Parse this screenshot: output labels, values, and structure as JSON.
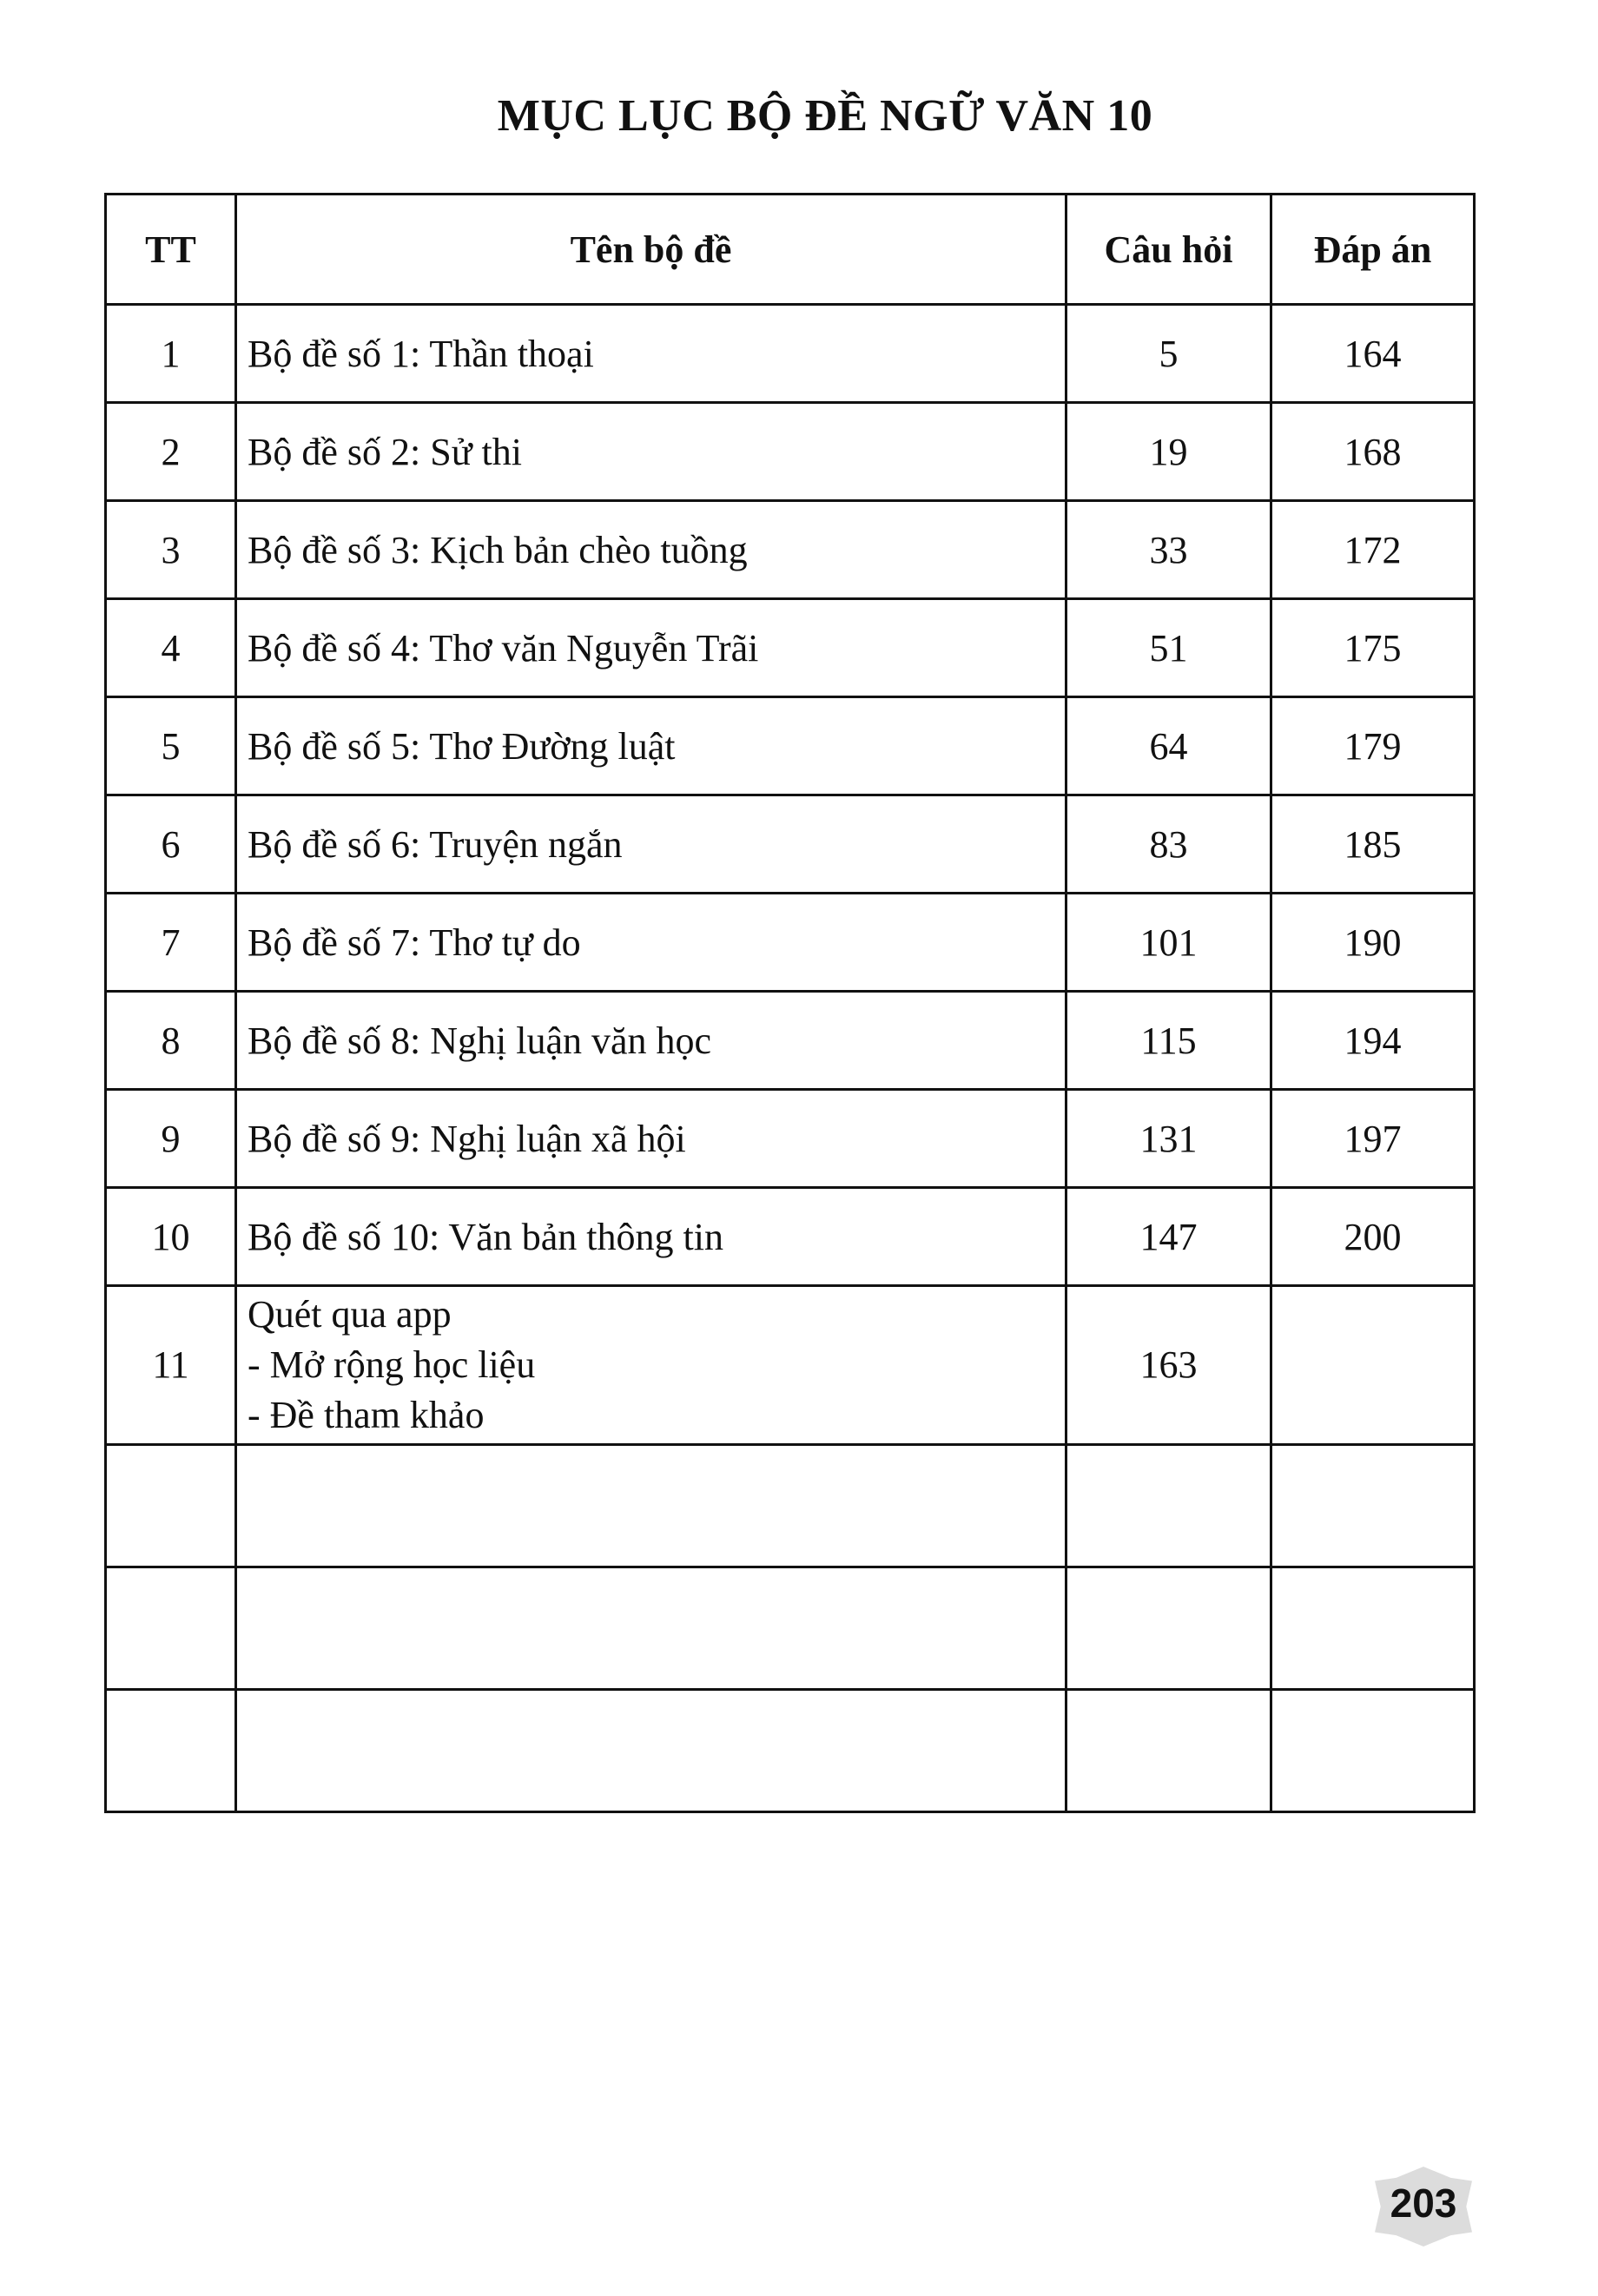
{
  "title": "MỤC LỤC BỘ ĐỀ NGỮ VĂN 10",
  "headers": {
    "tt": "TT",
    "name": "Tên bộ đề",
    "questions": "Câu hỏi",
    "answers": "Đáp án"
  },
  "rows": [
    {
      "tt": "1",
      "name": "Bộ đề số 1: Thần thoại",
      "questions": "5",
      "answers": "164"
    },
    {
      "tt": "2",
      "name": "Bộ đề số 2: Sử thi",
      "questions": "19",
      "answers": "168"
    },
    {
      "tt": "3",
      "name": "Bộ đề số 3: Kịch bản chèo tuồng",
      "questions": "33",
      "answers": "172"
    },
    {
      "tt": "4",
      "name": "Bộ đề số 4: Thơ văn Nguyễn Trãi",
      "questions": "51",
      "answers": "175"
    },
    {
      "tt": "5",
      "name": "Bộ đề số 5: Thơ Đường luật",
      "questions": "64",
      "answers": "179"
    },
    {
      "tt": "6",
      "name": "Bộ đề số 6: Truyện ngắn",
      "questions": "83",
      "answers": "185"
    },
    {
      "tt": "7",
      "name": "Bộ đề số 7: Thơ tự do",
      "questions": "101",
      "answers": "190"
    },
    {
      "tt": "8",
      "name": "Bộ đề số 8: Nghị luận văn học",
      "questions": "115",
      "answers": "194"
    },
    {
      "tt": "9",
      "name": "Bộ đề số 9: Nghị luận xã hội",
      "questions": "131",
      "answers": "197"
    },
    {
      "tt": "10",
      "name": "Bộ đề số 10: Văn bản thông tin",
      "questions": "147",
      "answers": "200"
    }
  ],
  "row11": {
    "tt": "11",
    "line1": "Quét qua app",
    "line2": "- Mở rộng học liệu",
    "line3": "- Đề tham khảo",
    "questions": "163",
    "answers": ""
  },
  "page_number": "203"
}
